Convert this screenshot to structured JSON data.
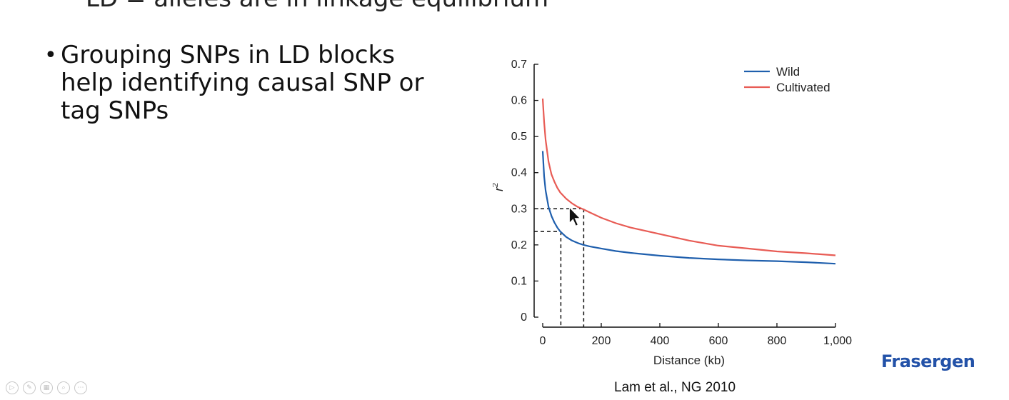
{
  "slide": {
    "top_text": "LD = alleles are in linkage equilibrium",
    "bullet_text": "Grouping SNPs in LD blocks help identifying causal SNP or tag SNPs",
    "citation": "Lam et al., NG 2010",
    "brand": "Frasergen"
  },
  "player_controls": [
    {
      "name": "play",
      "glyph": "▷"
    },
    {
      "name": "pen",
      "glyph": "✎"
    },
    {
      "name": "slides",
      "glyph": "▦"
    },
    {
      "name": "zoom",
      "glyph": "⌕"
    },
    {
      "name": "more",
      "glyph": "⋯"
    }
  ],
  "chart_data": {
    "type": "line",
    "xlabel": "Distance (kb)",
    "ylabel": "r",
    "ylabel_superscript": "2",
    "xlim": [
      0,
      1000
    ],
    "ylim": [
      0,
      0.7
    ],
    "xticks": [
      0,
      200,
      400,
      600,
      800,
      1000
    ],
    "xtick_labels": [
      "0",
      "200",
      "400",
      "600",
      "800",
      "1,000"
    ],
    "yticks": [
      0,
      0.1,
      0.2,
      0.3,
      0.4,
      0.5,
      0.6,
      0.7
    ],
    "ytick_labels": [
      "0",
      "0.1",
      "0.2",
      "0.3",
      "0.4",
      "0.5",
      "0.6",
      "0.7"
    ],
    "grid": false,
    "legend": "top-right",
    "series": [
      {
        "name": "Wild",
        "color": "#1f5fad",
        "x": [
          0,
          5,
          10,
          20,
          30,
          40,
          50,
          60,
          80,
          100,
          120,
          140,
          160,
          200,
          250,
          300,
          400,
          500,
          600,
          700,
          800,
          900,
          1000
        ],
        "y": [
          0.46,
          0.39,
          0.35,
          0.305,
          0.28,
          0.262,
          0.248,
          0.237,
          0.222,
          0.212,
          0.205,
          0.2,
          0.196,
          0.19,
          0.183,
          0.178,
          0.17,
          0.164,
          0.16,
          0.157,
          0.155,
          0.152,
          0.148
        ]
      },
      {
        "name": "Cultivated",
        "color": "#e85c55",
        "x": [
          0,
          5,
          10,
          20,
          30,
          40,
          50,
          60,
          80,
          100,
          120,
          140,
          160,
          200,
          250,
          300,
          400,
          500,
          600,
          700,
          800,
          900,
          1000
        ],
        "y": [
          0.605,
          0.54,
          0.49,
          0.43,
          0.395,
          0.375,
          0.358,
          0.345,
          0.328,
          0.315,
          0.305,
          0.298,
          0.29,
          0.275,
          0.26,
          0.248,
          0.23,
          0.212,
          0.198,
          0.19,
          0.182,
          0.177,
          0.171
        ]
      }
    ],
    "annotations": [
      {
        "type": "dashed-drop",
        "x": 140,
        "y": 0.3
      },
      {
        "type": "dashed-drop",
        "x": 62,
        "y": 0.237
      }
    ]
  }
}
